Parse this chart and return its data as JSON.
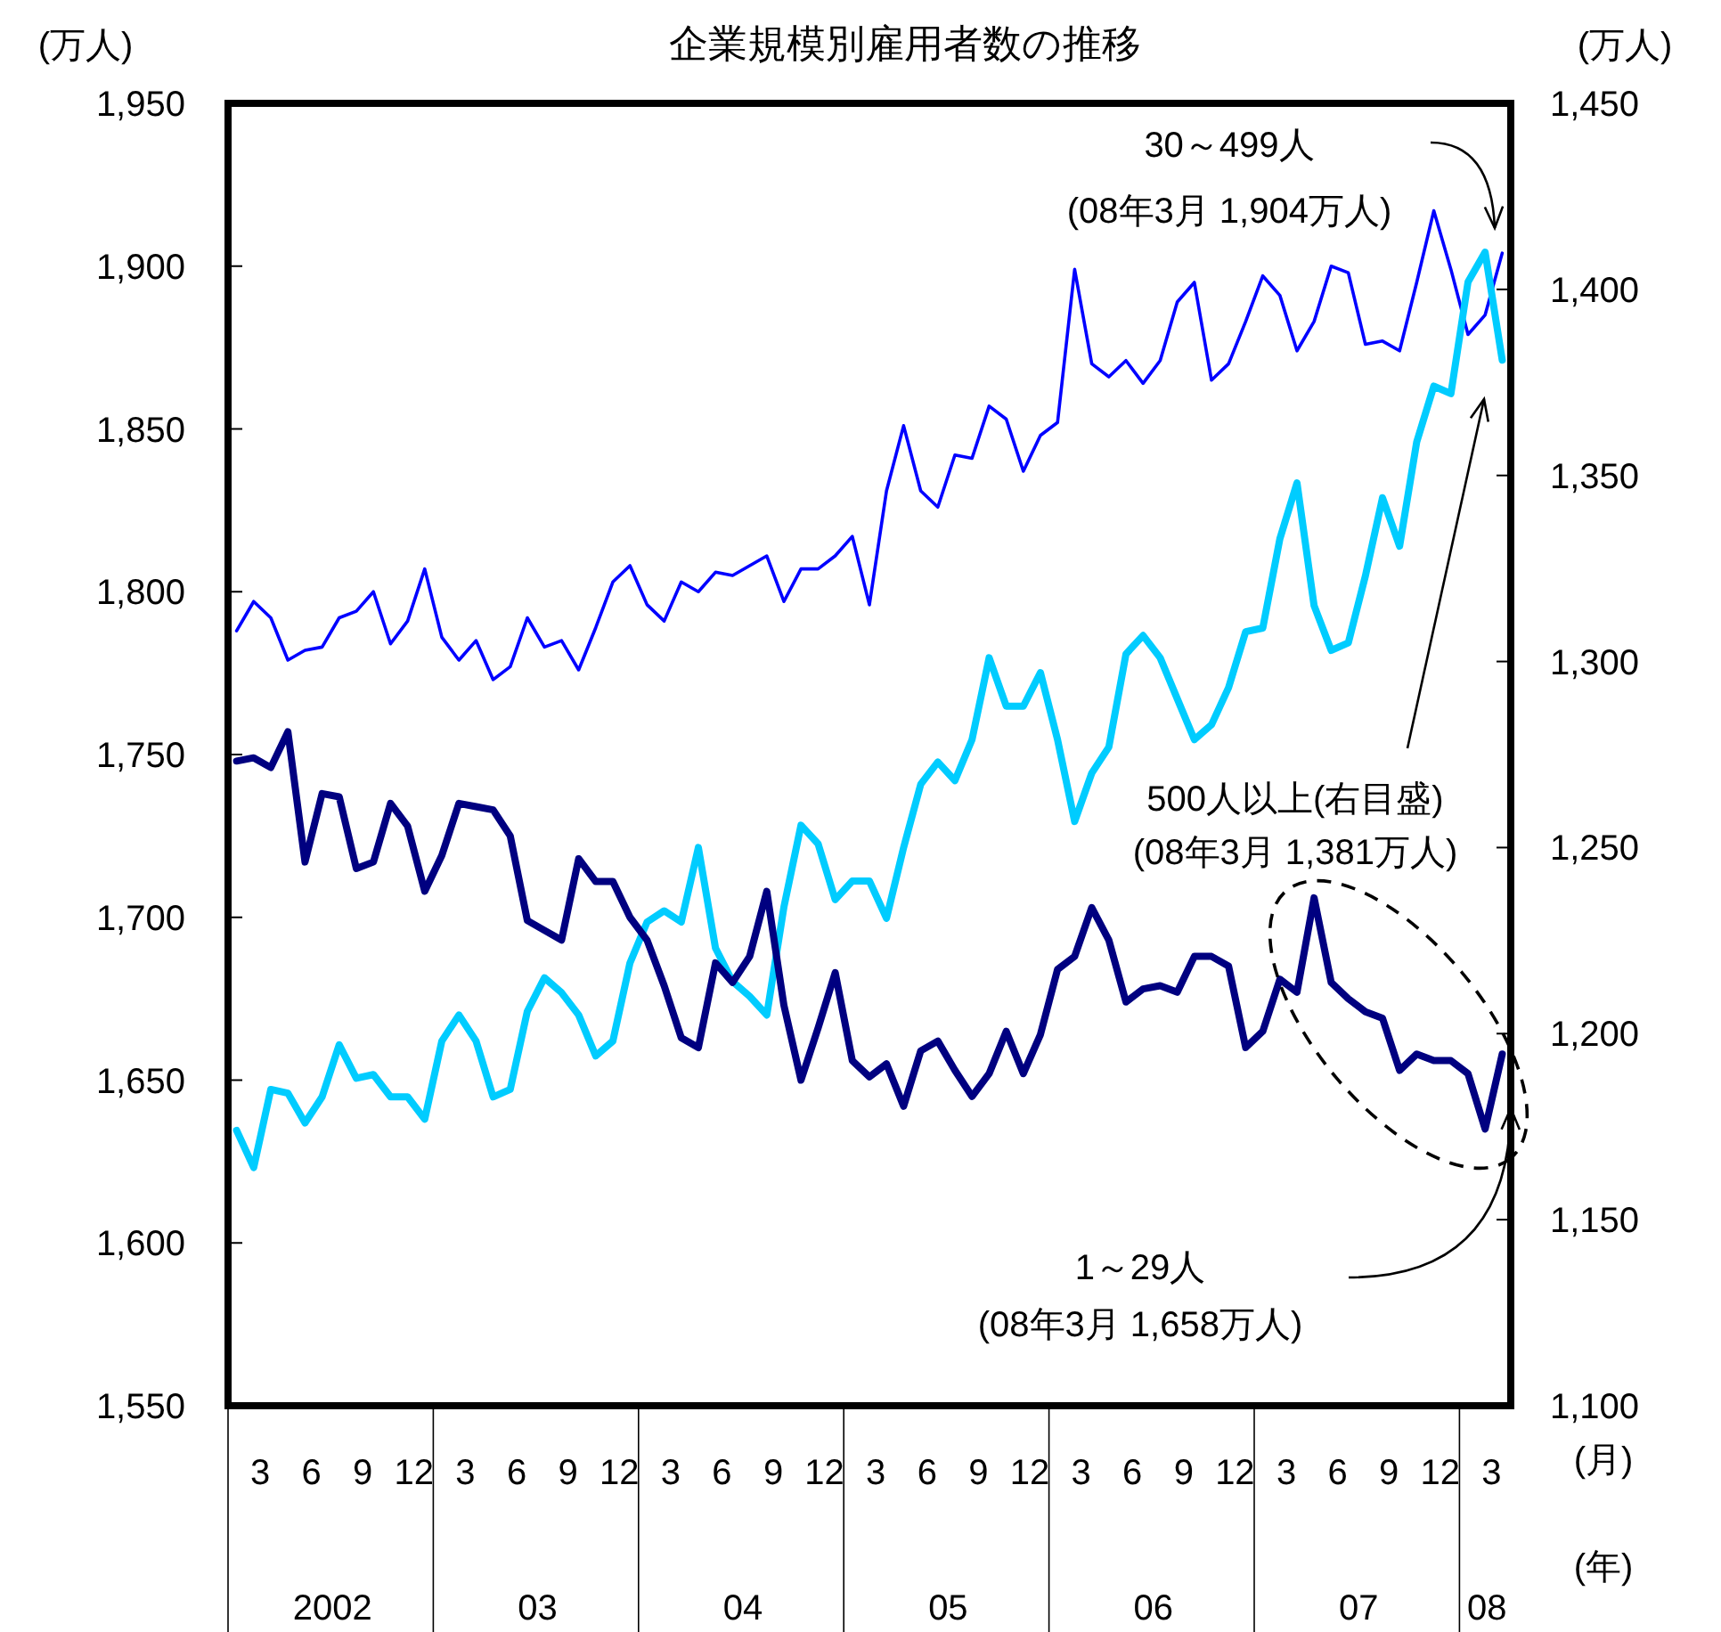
{
  "chart_data": {
    "type": "line",
    "title": "企業規模別雇用者数の推移",
    "ylabel": "(万人)",
    "y2label": "(万人)",
    "xlabel": "(月)",
    "x": [
      "2002-01",
      "2002-02",
      "2002-03",
      "2002-04",
      "2002-05",
      "2002-06",
      "2002-07",
      "2002-08",
      "2002-09",
      "2002-10",
      "2002-11",
      "2002-12",
      "2003-01",
      "2003-02",
      "2003-03",
      "2003-04",
      "2003-05",
      "2003-06",
      "2003-07",
      "2003-08",
      "2003-09",
      "2003-10",
      "2003-11",
      "2003-12",
      "2004-01",
      "2004-02",
      "2004-03",
      "2004-04",
      "2004-05",
      "2004-06",
      "2004-07",
      "2004-08",
      "2004-09",
      "2004-10",
      "2004-11",
      "2004-12",
      "2005-01",
      "2005-02",
      "2005-03",
      "2005-04",
      "2005-05",
      "2005-06",
      "2005-07",
      "2005-08",
      "2005-09",
      "2005-10",
      "2005-11",
      "2005-12",
      "2006-01",
      "2006-02",
      "2006-03",
      "2006-04",
      "2006-05",
      "2006-06",
      "2006-07",
      "2006-08",
      "2006-09",
      "2006-10",
      "2006-11",
      "2006-12",
      "2007-01",
      "2007-02",
      "2007-03",
      "2007-04",
      "2007-05",
      "2007-06",
      "2007-07",
      "2007-08",
      "2007-09",
      "2007-10",
      "2007-11",
      "2007-12",
      "2008-01",
      "2008-02",
      "2008-03"
    ],
    "xticks": [
      {
        "value": "2002-03",
        "label": "3"
      },
      {
        "value": "2002-06",
        "label": "6"
      },
      {
        "value": "2002-09",
        "label": "9"
      },
      {
        "value": "2002-12",
        "label": "12"
      },
      {
        "value": "2003-03",
        "label": "3"
      },
      {
        "value": "2003-06",
        "label": "6"
      },
      {
        "value": "2003-09",
        "label": "9"
      },
      {
        "value": "2003-12",
        "label": "12"
      },
      {
        "value": "2004-03",
        "label": "3"
      },
      {
        "value": "2004-06",
        "label": "6"
      },
      {
        "value": "2004-09",
        "label": "9"
      },
      {
        "value": "2004-12",
        "label": "12"
      },
      {
        "value": "2005-03",
        "label": "3"
      },
      {
        "value": "2005-06",
        "label": "6"
      },
      {
        "value": "2005-09",
        "label": "9"
      },
      {
        "value": "2005-12",
        "label": "12"
      },
      {
        "value": "2006-03",
        "label": "3"
      },
      {
        "value": "2006-06",
        "label": "6"
      },
      {
        "value": "2006-09",
        "label": "9"
      },
      {
        "value": "2006-12",
        "label": "12"
      },
      {
        "value": "2007-03",
        "label": "3"
      },
      {
        "value": "2007-06",
        "label": "6"
      },
      {
        "value": "2007-09",
        "label": "9"
      },
      {
        "value": "2007-12",
        "label": "12"
      },
      {
        "value": "2008-03",
        "label": "3"
      }
    ],
    "xlim": [
      "2001-12-16",
      "2008-03-16"
    ],
    "ylim": [
      1550,
      1950
    ],
    "yticks": [
      {
        "value": 1550,
        "label": "1,550"
      },
      {
        "value": 1600,
        "label": "1,600"
      },
      {
        "value": 1650,
        "label": "1,650"
      },
      {
        "value": 1700,
        "label": "1,700"
      },
      {
        "value": 1750,
        "label": "1,750"
      },
      {
        "value": 1800,
        "label": "1,800"
      },
      {
        "value": 1850,
        "label": "1,850"
      },
      {
        "value": 1900,
        "label": "1,900"
      },
      {
        "value": 1950,
        "label": "1,950"
      }
    ],
    "y2lim": [
      1100,
      1450
    ],
    "y2ticks": [
      {
        "value": 1100,
        "label": "1,100"
      },
      {
        "value": 1150,
        "label": "1,150"
      },
      {
        "value": 1200,
        "label": "1,200"
      },
      {
        "value": 1250,
        "label": "1,250"
      },
      {
        "value": 1300,
        "label": "1,300"
      },
      {
        "value": 1350,
        "label": "1,350"
      },
      {
        "value": 1400,
        "label": "1,400"
      },
      {
        "value": 1450,
        "label": "1,450"
      }
    ],
    "grid": false,
    "marker": "none",
    "line_style": "solid",
    "series": [
      {
        "color": "#0000ff",
        "values": [
          1788,
          1797,
          1792,
          1779,
          1782,
          1783,
          1792,
          1794,
          1800,
          1784,
          1791,
          1807,
          1786,
          1779,
          1785,
          1773,
          1777,
          1792,
          1783,
          1785,
          1776,
          1789,
          1803,
          1808,
          1796,
          1791,
          1803,
          1800,
          1806,
          1805,
          1808,
          1811,
          1797,
          1807,
          1807,
          1811,
          1817,
          1796,
          1831,
          1851,
          1831,
          1826,
          1842,
          1841,
          1857,
          1853,
          1837,
          1848,
          1852,
          1899,
          1870,
          1866,
          1871,
          1864,
          1871,
          1889,
          1895,
          1865,
          1870,
          1883,
          1897,
          1891,
          1874,
          1883,
          1900,
          1898,
          1876,
          1877,
          1874,
          1895,
          1917,
          1899,
          1879,
          1885,
          1904
        ]
      },
      {
        "color": "#00ccff",
        "axis": "y2",
        "values": [
          1174,
          1164,
          1185,
          1184,
          1176,
          1183,
          1197,
          1188,
          1189,
          1183,
          1183,
          1177,
          1198,
          1205,
          1198,
          1183,
          1185,
          1206,
          1215,
          1211,
          1205,
          1194,
          1198,
          1219,
          1230,
          1233,
          1230,
          1250,
          1223,
          1214,
          1210,
          1205,
          1234,
          1256,
          1251,
          1236,
          1241,
          1241,
          1231,
          1250,
          1267,
          1273,
          1268,
          1279,
          1301,
          1288,
          1288,
          1297,
          1279,
          1257,
          1270,
          1277,
          1302,
          1307,
          1301,
          1290,
          1279,
          1283,
          1293,
          1308,
          1309,
          1333,
          1348,
          1315,
          1303,
          1305,
          1323,
          1344,
          1331,
          1359,
          1374,
          1372,
          1402,
          1410,
          1381
        ]
      },
      {
        "color": "#000080",
        "values": [
          1748,
          1749,
          1746,
          1757,
          1717,
          1738,
          1737,
          1715,
          1717,
          1735,
          1728,
          1708,
          1719,
          1735,
          1734,
          1733,
          1725,
          1699,
          1696,
          1693,
          1718,
          1711,
          1711,
          1700,
          1693,
          1679,
          1663,
          1660,
          1686,
          1680,
          1688,
          1708,
          1673,
          1650,
          1666,
          1683,
          1656,
          1651,
          1655,
          1642,
          1659,
          1662,
          1653,
          1645,
          1652,
          1665,
          1652,
          1664,
          1684,
          1688,
          1703,
          1693,
          1674,
          1678,
          1679,
          1677,
          1688,
          1688,
          1685,
          1660,
          1665,
          1681,
          1677,
          1706,
          1680,
          1675,
          1671,
          1669,
          1653,
          1658,
          1656,
          1656,
          1652,
          1635,
          1658
        ]
      }
    ],
    "annotations": [
      "30～499人\n(08年3月 1,904万人)",
      "500人以上(右目盛)\n(08年3月 1,381万人)",
      "1～29人\n(08年3月 1,658万人)",
      "2002",
      "03",
      "04",
      "05",
      "06",
      "07",
      "08",
      "(年)"
    ]
  }
}
